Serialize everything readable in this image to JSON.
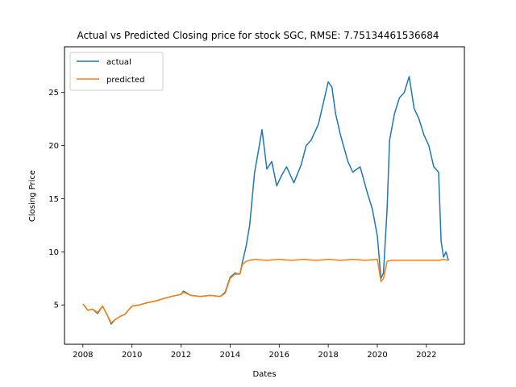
{
  "chart_data": {
    "type": "line",
    "title": "Actual vs Predicted Closing price for stock SGC, RMSE: 7.75134461536684",
    "xlabel": "Dates",
    "ylabel": "Closing Price",
    "xlim": [
      2007.25,
      2023.55
    ],
    "ylim": [
      1.3,
      29.3
    ],
    "xticks": [
      2008,
      2010,
      2012,
      2014,
      2016,
      2018,
      2020,
      2022
    ],
    "yticks": [
      5,
      10,
      15,
      20,
      25
    ],
    "grid": false,
    "legend": "top-left",
    "series": [
      {
        "name": "actual",
        "color": "#1f77b4",
        "x": [
          2008.0,
          2008.2,
          2008.4,
          2008.6,
          2008.8,
          2009.0,
          2009.15,
          2009.3,
          2009.5,
          2009.7,
          2010.0,
          2010.3,
          2010.6,
          2011.0,
          2011.3,
          2011.6,
          2012.0,
          2012.1,
          2012.4,
          2012.8,
          2013.2,
          2013.6,
          2013.8,
          2014.0,
          2014.2,
          2014.4,
          2014.5,
          2014.65,
          2014.8,
          2015.0,
          2015.1,
          2015.3,
          2015.5,
          2015.7,
          2015.9,
          2016.1,
          2016.3,
          2016.6,
          2016.9,
          2017.1,
          2017.3,
          2017.6,
          2017.8,
          2018.0,
          2018.15,
          2018.3,
          2018.5,
          2018.8,
          2019.0,
          2019.3,
          2019.6,
          2019.8,
          2020.0,
          2020.15,
          2020.25,
          2020.4,
          2020.5,
          2020.7,
          2020.9,
          2021.1,
          2021.3,
          2021.5,
          2021.7,
          2021.9,
          2022.1,
          2022.3,
          2022.5,
          2022.6,
          2022.7,
          2022.8,
          2022.9
        ],
        "values": [
          5.1,
          4.5,
          4.6,
          4.2,
          4.9,
          4.0,
          3.2,
          3.6,
          3.9,
          4.1,
          4.9,
          5.0,
          5.2,
          5.4,
          5.6,
          5.8,
          6.0,
          6.3,
          5.9,
          5.8,
          5.9,
          5.8,
          6.2,
          7.6,
          8.0,
          7.9,
          9.0,
          10.5,
          12.5,
          17.5,
          18.8,
          21.5,
          17.8,
          18.5,
          16.2,
          17.2,
          18.0,
          16.5,
          18.2,
          20.0,
          20.5,
          22.0,
          24.0,
          26.0,
          25.5,
          23.0,
          21.0,
          18.5,
          17.5,
          18.0,
          15.5,
          14.0,
          11.5,
          7.5,
          8.0,
          14.0,
          20.5,
          23.0,
          24.5,
          25.0,
          26.5,
          23.5,
          22.5,
          21.0,
          20.0,
          18.0,
          17.5,
          11.0,
          9.5,
          10.0,
          9.2
        ]
      },
      {
        "name": "predicted",
        "color": "#ff7f0e",
        "x": [
          2008.0,
          2008.2,
          2008.4,
          2008.6,
          2008.8,
          2009.0,
          2009.15,
          2009.3,
          2009.5,
          2009.7,
          2010.0,
          2010.3,
          2010.6,
          2011.0,
          2011.3,
          2011.6,
          2012.0,
          2012.1,
          2012.4,
          2012.8,
          2013.2,
          2013.6,
          2013.8,
          2014.0,
          2014.2,
          2014.4,
          2014.5,
          2014.65,
          2014.8,
          2015.0,
          2015.5,
          2016.0,
          2016.5,
          2017.0,
          2017.5,
          2018.0,
          2018.5,
          2019.0,
          2019.5,
          2020.0,
          2020.15,
          2020.25,
          2020.4,
          2020.6,
          2021.0,
          2021.5,
          2022.0,
          2022.5,
          2022.7,
          2022.9
        ],
        "values": [
          5.1,
          4.5,
          4.6,
          4.3,
          4.9,
          4.0,
          3.3,
          3.6,
          3.9,
          4.1,
          4.9,
          5.0,
          5.2,
          5.4,
          5.6,
          5.8,
          6.0,
          6.2,
          5.9,
          5.8,
          5.9,
          5.8,
          6.1,
          7.5,
          7.9,
          7.9,
          8.8,
          9.1,
          9.2,
          9.3,
          9.2,
          9.3,
          9.2,
          9.3,
          9.2,
          9.3,
          9.2,
          9.3,
          9.2,
          9.3,
          7.2,
          7.5,
          9.1,
          9.2,
          9.2,
          9.2,
          9.2,
          9.2,
          9.3,
          9.2
        ]
      }
    ]
  }
}
